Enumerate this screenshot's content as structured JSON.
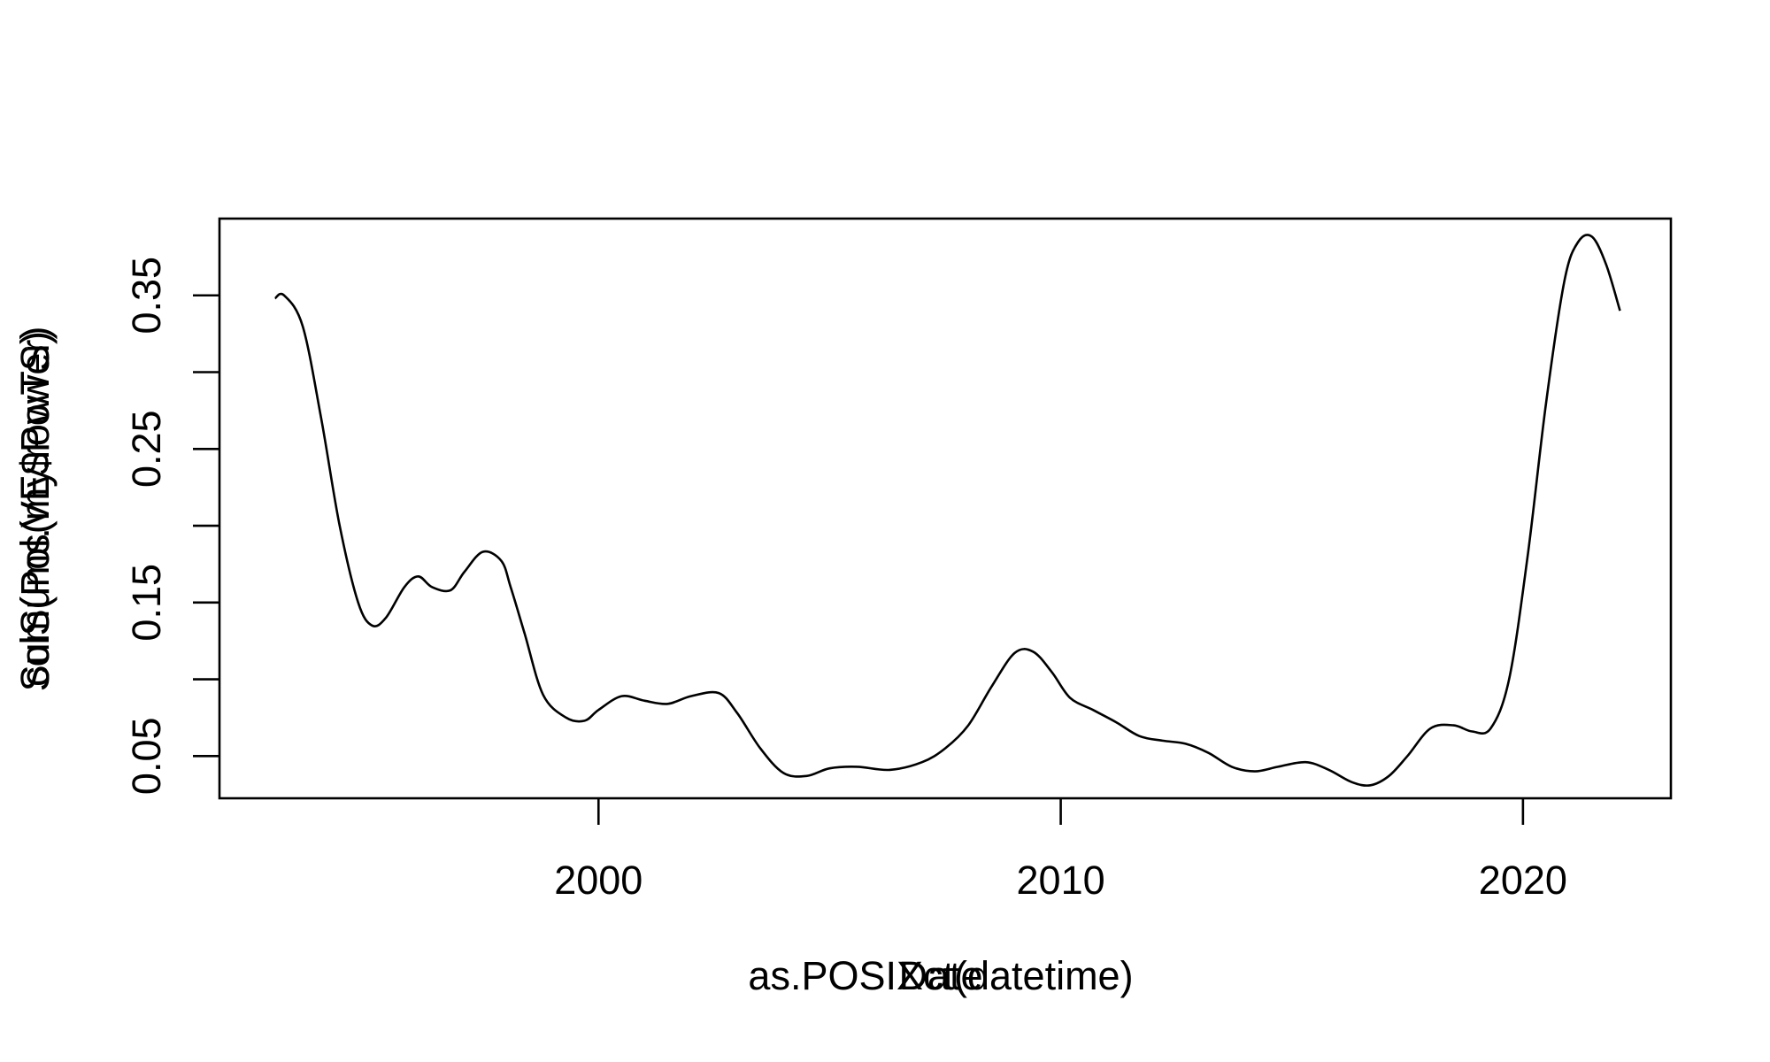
{
  "chart_data": {
    "type": "line",
    "title": "",
    "xlabel": "as.POSIXct(datetime)",
    "xlabel_overlay": "Date",
    "ylabel": "colSums(my.rowTS)",
    "ylabel_overlay": "Sum(Pol.VE$Power)",
    "xlim": [
      1991.8,
      2023.2
    ],
    "ylim": [
      0.0225,
      0.4
    ],
    "xticks": [
      2000,
      2010,
      2020
    ],
    "xtick_labels": [
      "2000",
      "2010",
      "2020"
    ],
    "yticks": [
      0.05,
      0.1,
      0.15,
      0.2,
      0.25,
      0.3,
      0.35
    ],
    "ytick_labels": [
      "0.05",
      "",
      "0.15",
      "",
      "0.25",
      "",
      "0.35"
    ],
    "grid": false,
    "legend": "none",
    "line_color": "#000000",
    "series": [
      {
        "x": [
          1993.0,
          1993.2,
          1993.6,
          1994.0,
          1994.4,
          1994.8,
          1995.1,
          1995.4,
          1995.8,
          1996.1,
          1996.4,
          1996.8,
          1997.1,
          1997.5,
          1997.9,
          1998.1,
          1998.4,
          1998.8,
          1999.3,
          1999.7,
          2000.0,
          2000.5,
          2001.0,
          2001.5,
          2002.0,
          2002.6,
          2003.0,
          2003.5,
          2004.0,
          2004.5,
          2005.0,
          2005.6,
          2006.3,
          2007.0,
          2007.5,
          2008.0,
          2008.5,
          2009.0,
          2009.4,
          2009.8,
          2010.2,
          2010.7,
          2011.2,
          2011.7,
          2012.2,
          2012.7,
          2013.2,
          2013.7,
          2014.2,
          2014.7,
          2015.3,
          2015.8,
          2016.3,
          2016.7,
          2017.1,
          2017.5,
          2018.0,
          2018.5,
          2018.9,
          2019.3,
          2019.7,
          2020.1,
          2020.5,
          2020.9,
          2021.2,
          2021.5,
          2021.8,
          2022.1
        ],
        "values": [
          0.348,
          0.35,
          0.33,
          0.27,
          0.2,
          0.15,
          0.135,
          0.14,
          0.16,
          0.167,
          0.16,
          0.158,
          0.17,
          0.183,
          0.177,
          0.16,
          0.13,
          0.09,
          0.075,
          0.073,
          0.08,
          0.089,
          0.086,
          0.084,
          0.089,
          0.091,
          0.078,
          0.055,
          0.039,
          0.037,
          0.042,
          0.043,
          0.041,
          0.046,
          0.055,
          0.07,
          0.095,
          0.117,
          0.118,
          0.105,
          0.088,
          0.08,
          0.072,
          0.063,
          0.06,
          0.058,
          0.052,
          0.043,
          0.04,
          0.043,
          0.046,
          0.041,
          0.033,
          0.031,
          0.037,
          0.05,
          0.068,
          0.07,
          0.066,
          0.068,
          0.1,
          0.18,
          0.28,
          0.36,
          0.385,
          0.388,
          0.37,
          0.34
        ]
      }
    ]
  }
}
